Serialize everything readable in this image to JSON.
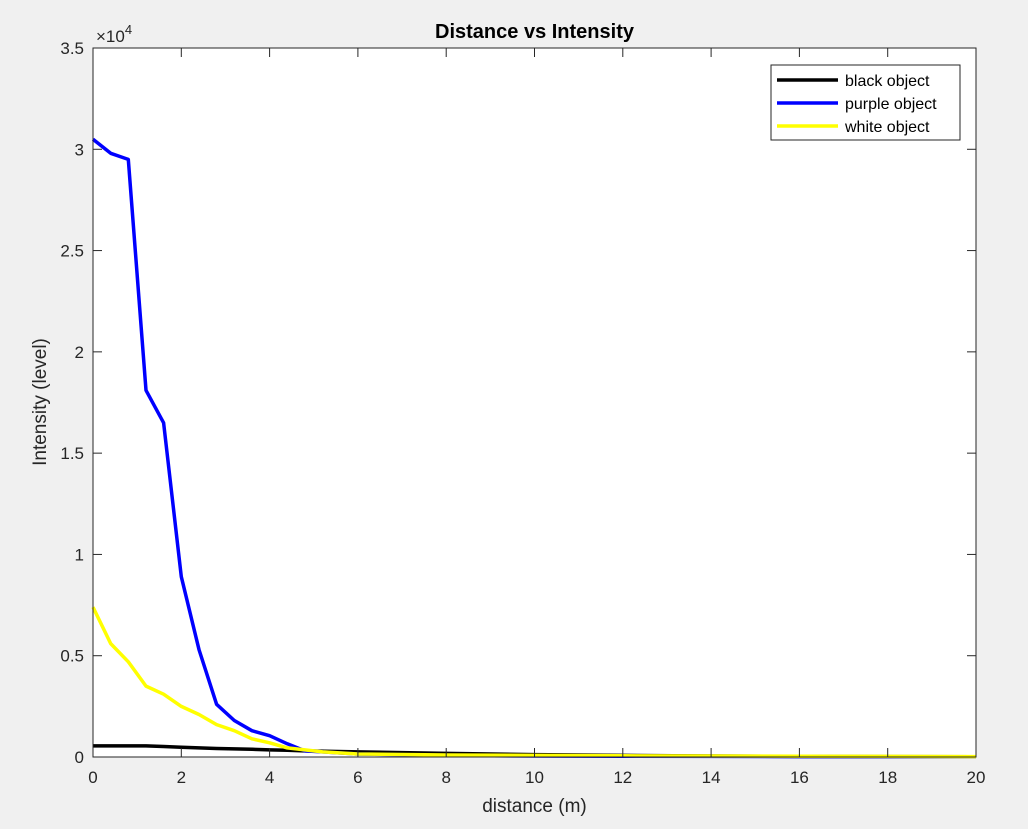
{
  "chart_data": {
    "type": "line",
    "title": "Distance vs Intensity",
    "xlabel": "distance (m)",
    "ylabel": "Intensity (level)",
    "y_exponent_label": "×10",
    "y_exponent": "4",
    "xlim": [
      0,
      20
    ],
    "ylim": [
      0,
      35000
    ],
    "x_ticks": [
      0,
      2,
      4,
      6,
      8,
      10,
      12,
      14,
      16,
      18,
      20
    ],
    "x_tick_labels": [
      "0",
      "2",
      "4",
      "6",
      "8",
      "10",
      "12",
      "14",
      "16",
      "18",
      "20"
    ],
    "y_ticks": [
      0,
      5000,
      10000,
      15000,
      20000,
      25000,
      30000,
      35000
    ],
    "y_tick_labels": [
      "0",
      "0.5",
      "1",
      "1.5",
      "2",
      "2.5",
      "3",
      "3.5"
    ],
    "grid": false,
    "legend_position": "top-right",
    "series": [
      {
        "name": "black object",
        "color": "#000000",
        "x": [
          0,
          0.4,
          0.8,
          1.2,
          1.6,
          2.0,
          2.4,
          2.8,
          3.2,
          3.6,
          4.0,
          4.4,
          4.8,
          6,
          8,
          10,
          12,
          14,
          16,
          18,
          20
        ],
        "y": [
          550,
          550,
          550,
          550,
          520,
          480,
          450,
          420,
          400,
          380,
          350,
          330,
          300,
          250,
          180,
          120,
          80,
          50,
          30,
          20,
          10
        ]
      },
      {
        "name": "purple object",
        "color": "#0000ff",
        "x": [
          0,
          0.4,
          0.8,
          1.2,
          1.6,
          2.0,
          2.4,
          2.8,
          3.2,
          3.6,
          4.0,
          4.4,
          4.8,
          5.2,
          6,
          8,
          10,
          12,
          14,
          16,
          18,
          20
        ],
        "y": [
          30500,
          29800,
          29500,
          18100,
          16500,
          8900,
          5300,
          2600,
          1800,
          1300,
          1050,
          650,
          300,
          250,
          150,
          80,
          50,
          40,
          30,
          20,
          15,
          10
        ]
      },
      {
        "name": "white object",
        "color": "#ffff00",
        "x": [
          0,
          0.4,
          0.8,
          1.2,
          1.6,
          2.0,
          2.4,
          2.8,
          3.2,
          3.6,
          4.0,
          4.4,
          4.8,
          5.2,
          6,
          8,
          10,
          12,
          14,
          16,
          18,
          20
        ],
        "y": [
          7400,
          5600,
          4700,
          3500,
          3100,
          2500,
          2100,
          1600,
          1300,
          900,
          700,
          450,
          350,
          250,
          150,
          100,
          80,
          60,
          50,
          40,
          30,
          20
        ]
      }
    ]
  }
}
